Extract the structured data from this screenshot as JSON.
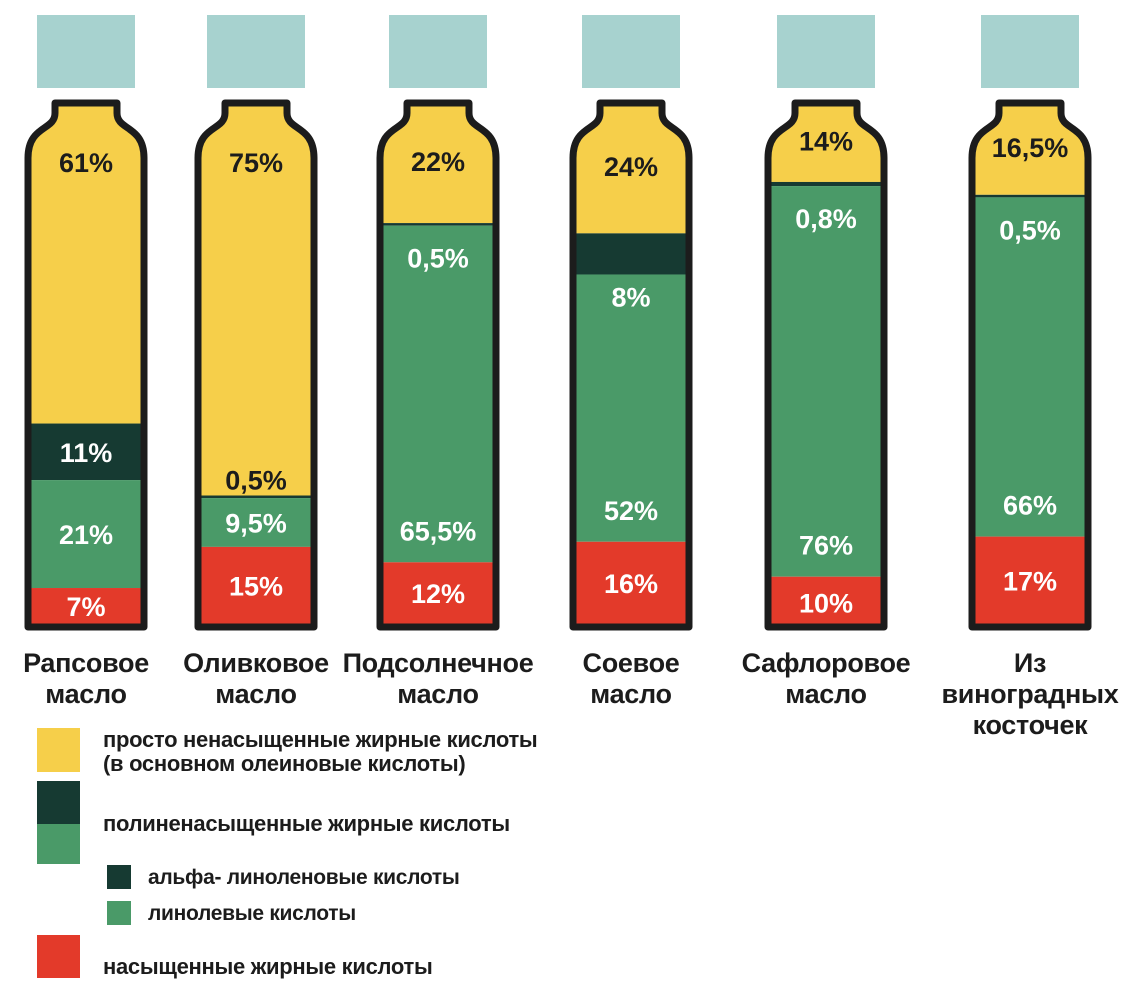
{
  "chart_data": {
    "type": "bar",
    "stacked": true,
    "unit": "%",
    "categories": [
      "Рапсовое масло",
      "Оливковое масло",
      "Подсолнечное масло",
      "Соевое масло",
      "Сафлоровое масло",
      "Из виноградных косточек"
    ],
    "category_lines": [
      [
        "Рапсовое",
        "масло"
      ],
      [
        "Оливковое",
        "масло"
      ],
      [
        "Подсолнечное",
        "масло"
      ],
      [
        "Соевое",
        "масло"
      ],
      [
        "Сафлоровое",
        "масло"
      ],
      [
        "Из",
        "виноградных",
        "косточек"
      ]
    ],
    "series": [
      {
        "key": "mono",
        "color": "#f6cf4a",
        "values": [
          61,
          75,
          22,
          24,
          14,
          16.5
        ],
        "labels": [
          "61%",
          "75%",
          "22%",
          "24%",
          "14%",
          "16,5%"
        ]
      },
      {
        "key": "alpha",
        "color": "#163a32",
        "values": [
          11,
          0.5,
          0.5,
          8,
          0.8,
          0.5
        ],
        "labels": [
          "11%",
          "0,5%",
          "0,5%",
          "8%",
          "0,8%",
          "0,5%"
        ]
      },
      {
        "key": "linoleic",
        "color": "#4a9a68",
        "values": [
          21,
          9.5,
          65.5,
          52,
          76,
          66
        ],
        "labels": [
          "21%",
          "9,5%",
          "65,5%",
          "52%",
          "76%",
          "66%"
        ]
      },
      {
        "key": "saturated",
        "color": "#e33a2a",
        "values": [
          7,
          15,
          12,
          16,
          10,
          17
        ],
        "labels": [
          "7%",
          "15%",
          "12%",
          "16%",
          "10%",
          "17%"
        ]
      }
    ],
    "cap_color": "#a7d2cf",
    "outline_color": "#1c1c1c",
    "ylim": [
      0,
      100
    ]
  },
  "legend": {
    "mono": "просто ненасыщенные жирные кислоты\n(в основном олеиновые кислоты)",
    "poly": "полиненасыщенные жирные кислоты",
    "alpha": "альфа- линоленовые кислоты",
    "linoleic": "линолевые кислоты",
    "saturated": "насыщенные жирные кислоты",
    "colors": {
      "mono": "#f6cf4a",
      "alpha": "#163a32",
      "linoleic": "#4a9a68",
      "saturated": "#e33a2a"
    }
  }
}
